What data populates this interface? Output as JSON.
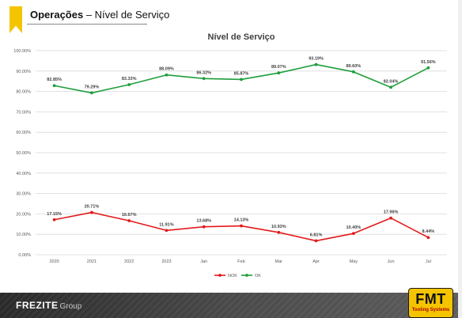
{
  "header": {
    "title_bold": "Operações",
    "title_rest": " – Nível de Serviço"
  },
  "footer": {
    "brand_main": "FREZITE",
    "brand_sub": "Group",
    "logo_main": "FMT",
    "logo_sub": "Tooling Systems"
  },
  "colors": {
    "accent": "#f5c400",
    "nok": "#e31a1c",
    "ok": "#1e9e3c"
  },
  "chart_data": {
    "type": "line",
    "title": "Nível de Serviço",
    "xlabel": "",
    "ylabel": "",
    "categories": [
      "2020",
      "2021",
      "2022",
      "2023",
      "Jan",
      "Feb",
      "Mar",
      "Apr",
      "May",
      "Jun",
      "Jul"
    ],
    "ylim": [
      0,
      100
    ],
    "yticks": [
      "0.00%",
      "10.00%",
      "20.00%",
      "30.00%",
      "40.00%",
      "50.00%",
      "60.00%",
      "70.00%",
      "80.00%",
      "90.00%",
      "100.00%"
    ],
    "grid": true,
    "legend_position": "bottom",
    "series": [
      {
        "name": "NOK",
        "color": "#e31a1c",
        "values": [
          17.15,
          20.71,
          16.67,
          11.91,
          13.68,
          14.13,
          10.93,
          6.81,
          10.4,
          17.96,
          8.44
        ],
        "labels": [
          "17.15%",
          "20.71%",
          "16.67%",
          "11.91%",
          "13.68%",
          "14.13%",
          "10.93%",
          "6.81%",
          "10.40%",
          "17.96%",
          "8.44%"
        ]
      },
      {
        "name": "OK",
        "color": "#1e9e3c",
        "values": [
          82.85,
          79.29,
          83.33,
          88.09,
          86.32,
          85.87,
          89.07,
          93.19,
          89.6,
          82.04,
          91.56
        ],
        "labels": [
          "82.85%",
          "79.29%",
          "83.33%",
          "88.09%",
          "86.32%",
          "85.87%",
          "89.07%",
          "93.19%",
          "89.60%",
          "82.04%",
          "91.56%"
        ]
      }
    ]
  }
}
